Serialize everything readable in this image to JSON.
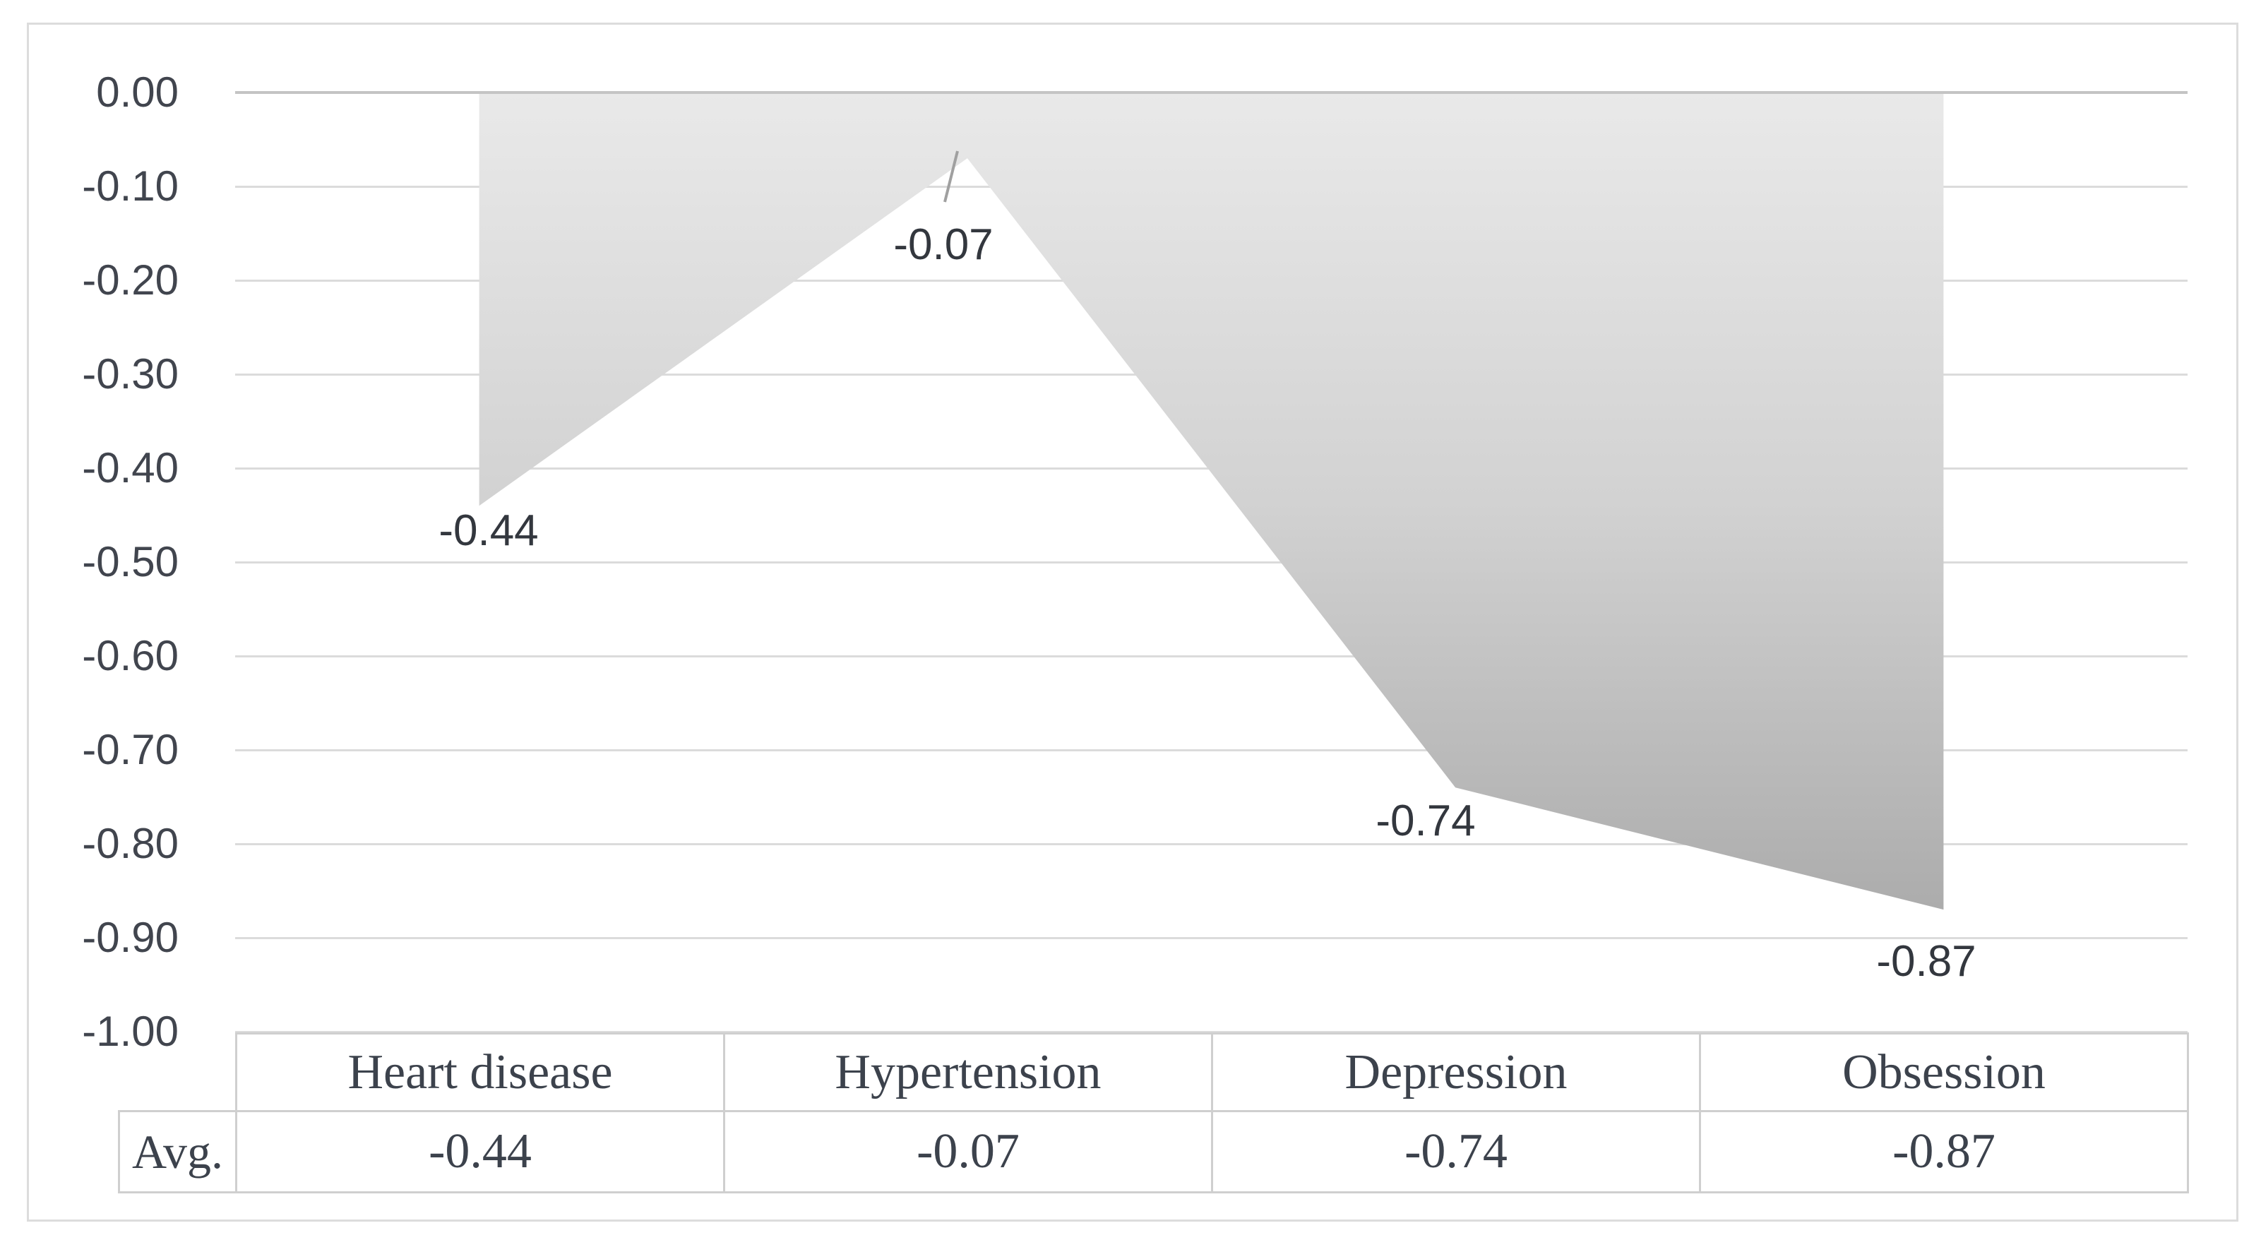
{
  "figure": {
    "border_color": "#dcdcdc",
    "background": "#ffffff"
  },
  "chart_data": {
    "type": "area",
    "title": "",
    "xlabel": "",
    "ylabel": "",
    "categories": [
      "Heart disease",
      "Hypertension",
      "Depression",
      "Obsession"
    ],
    "series": [
      {
        "name": "Avg.",
        "values": [
          -0.44,
          -0.07,
          -0.74,
          -0.87
        ]
      }
    ],
    "data_labels": [
      "-0.44",
      "-0.07",
      "-0.74",
      "-0.87"
    ],
    "ylim": [
      -1.0,
      0.0
    ],
    "ytick_step": 0.1,
    "yticks": [
      "0.00",
      "-0.10",
      "-0.20",
      "-0.30",
      "-0.40",
      "-0.50",
      "-0.60",
      "-0.70",
      "-0.80",
      "-0.90",
      "-1.00"
    ],
    "grid": true,
    "legend_position": "none",
    "area_gradient": {
      "top": "#e9e9e9",
      "mid": "#d2d2d2",
      "bottom": "#acacac"
    },
    "gridline_color": "#dbdbdb",
    "zero_line_color": "#c4c4c4",
    "leader_line_color": "#a0a0a0"
  },
  "table": {
    "row_label": "Avg.",
    "headers": [
      "Heart disease",
      "Hypertension",
      "Depression",
      "Obsession"
    ],
    "values": [
      "-0.44",
      "-0.07",
      "-0.74",
      "-0.87"
    ]
  }
}
